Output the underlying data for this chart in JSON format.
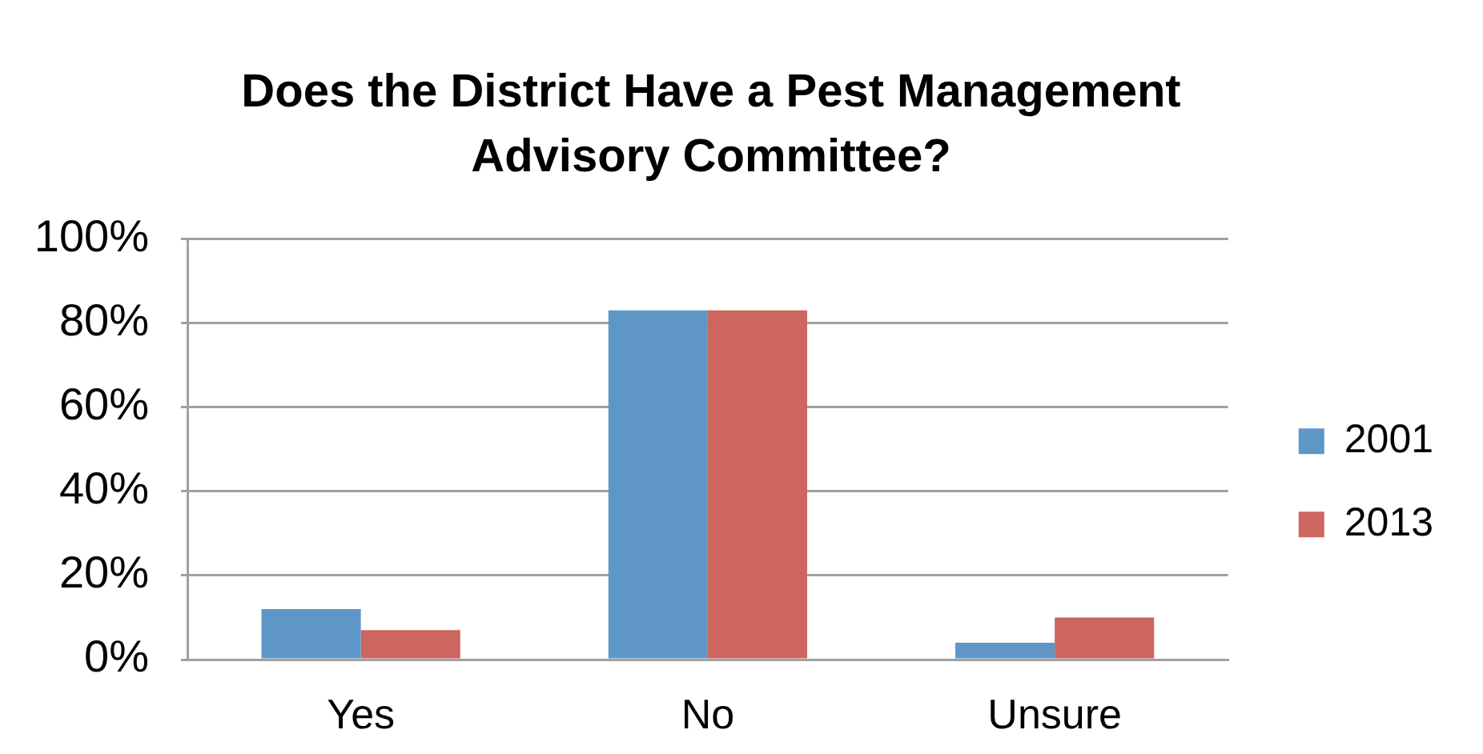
{
  "chart_data": {
    "type": "bar",
    "title": "Does the District Have a Pest Management Advisory Committee?",
    "categories": [
      "Yes",
      "No",
      "Unsure"
    ],
    "series": [
      {
        "name": "2001",
        "color": "#5f96c8",
        "values": [
          12,
          83,
          4
        ]
      },
      {
        "name": "2013",
        "color": "#cd665f",
        "values": [
          7,
          83,
          10
        ]
      }
    ],
    "ylim": [
      0,
      100
    ],
    "yticks": [
      {
        "value": 0,
        "label": "0%"
      },
      {
        "value": 20,
        "label": "20%"
      },
      {
        "value": 40,
        "label": "40%"
      },
      {
        "value": 60,
        "label": "60%"
      },
      {
        "value": 80,
        "label": "80%"
      },
      {
        "value": 100,
        "label": "100%"
      }
    ],
    "grid": "y",
    "legend": "right"
  }
}
